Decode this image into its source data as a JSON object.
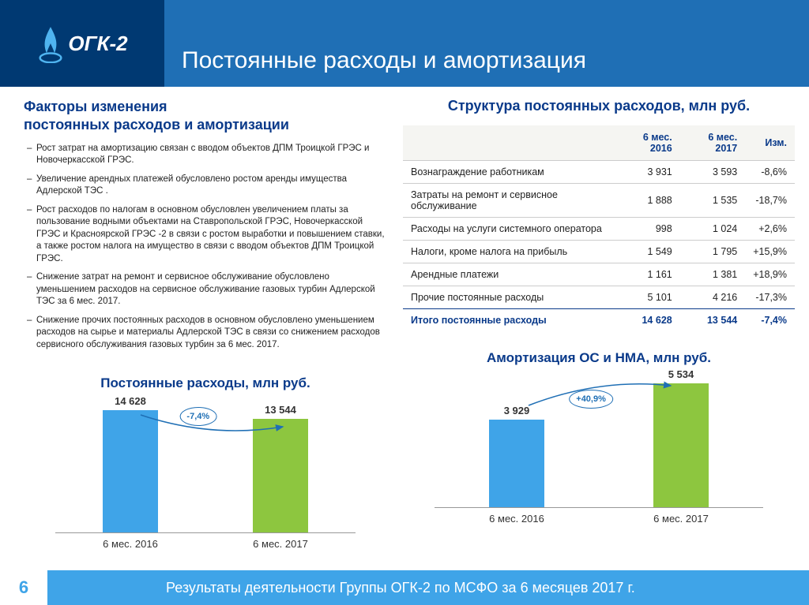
{
  "logo_text": "ОГК-2",
  "page_title": "Постоянные расходы и амортизация",
  "factors": {
    "heading": "Факторы изменения\nпостоянных расходов и амортизации",
    "items": [
      "Рост затрат на амортизацию связан с вводом объектов ДПМ Троицкой ГРЭС и Новочеркасской ГРЭС.",
      "Увеличение арендных платежей обусловлено ростом аренды имущества Адлерской ТЭС .",
      "Рост расходов по налогам в основном обусловлен увеличением платы за пользование водными объектами на  Ставропольской ГРЭС, Новочеркасской ГРЭС и Красноярской ГРЭС -2 в связи с ростом выработки и повышением ставки, а также ростом налога на имущество в связи с вводом объектов ДПМ Троицкой ГРЭС.",
      "Снижение затрат на ремонт и сервисное обслуживание обусловлено уменьшением расходов на сервисное обслуживание газовых турбин Адлерской ТЭС за 6 мес. 2017.",
      "Снижение прочих постоянных расходов в основном обусловлено уменьшением расходов на сырье и материалы Адлерской ТЭС в связи со снижением расходов сервисного обслуживания газовых турбин за 6 мес. 2017."
    ]
  },
  "table": {
    "title": "Структура постоянных расходов, млн руб.",
    "headers": [
      "",
      "6 мес. 2016",
      "6 мес. 2017",
      "Изм."
    ],
    "rows": [
      [
        "Вознаграждение работникам",
        "3 931",
        "3 593",
        "-8,6%"
      ],
      [
        "Затраты на ремонт и сервисное обслуживание",
        "1 888",
        "1 535",
        "-18,7%"
      ],
      [
        "Расходы на услуги системного оператора",
        "998",
        "1 024",
        "+2,6%"
      ],
      [
        "Налоги, кроме налога на прибыль",
        "1 549",
        "1 795",
        "+15,9%"
      ],
      [
        "Арендные платежи",
        "1 161",
        "1 381",
        "+18,9%"
      ],
      [
        "Прочие постоянные расходы",
        "5 101",
        "4 216",
        "-17,3%"
      ]
    ],
    "total": [
      "Итого постоянные расходы",
      "14 628",
      "13 544",
      "-7,4%"
    ]
  },
  "chart1": {
    "title": "Постоянные расходы, млн руб.",
    "categories": [
      "6 мес. 2016",
      "6 мес. 2017"
    ],
    "values": [
      14628,
      13544
    ],
    "value_labels": [
      "14 628",
      "13 544"
    ],
    "change_label": "-7,4%",
    "max": 16000,
    "colors": [
      "#3fa4e8",
      "#8dc63f"
    ]
  },
  "chart2": {
    "title": "Амортизация ОС и НМА, млн руб.",
    "categories": [
      "6 мес. 2016",
      "6 мес. 2017"
    ],
    "values": [
      3929,
      5534
    ],
    "value_labels": [
      "3 929",
      "5 534"
    ],
    "change_label": "+40,9%",
    "max": 6000,
    "colors": [
      "#3fa4e8",
      "#8dc63f"
    ]
  },
  "footer": {
    "page": "6",
    "text": "Результаты деятельности Группы ОГК-2 по МСФО за 6 месяцев 2017 г."
  }
}
